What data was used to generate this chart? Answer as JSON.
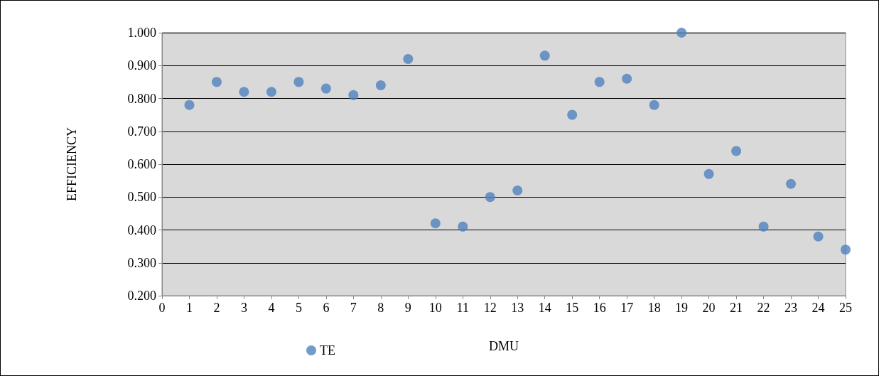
{
  "chart_data": {
    "type": "scatter",
    "xlabel": "DMU",
    "ylabel": "EFFICIENCY",
    "x": [
      1,
      2,
      3,
      4,
      5,
      6,
      7,
      8,
      9,
      10,
      11,
      12,
      13,
      14,
      15,
      16,
      17,
      18,
      19,
      20,
      21,
      22,
      23,
      24,
      25
    ],
    "series": [
      {
        "name": "TE",
        "color": "#4f81bd",
        "values": [
          0.78,
          0.85,
          0.82,
          0.82,
          0.85,
          0.83,
          0.81,
          0.84,
          0.92,
          0.42,
          0.41,
          0.5,
          0.52,
          0.93,
          0.75,
          0.85,
          0.86,
          0.78,
          1.0,
          0.57,
          0.64,
          0.41,
          0.54,
          0.38,
          0.34
        ]
      }
    ],
    "xlim": [
      0,
      25
    ],
    "xticks": [
      0,
      1,
      2,
      3,
      4,
      5,
      6,
      7,
      8,
      9,
      10,
      11,
      12,
      13,
      14,
      15,
      16,
      17,
      18,
      19,
      20,
      21,
      22,
      23,
      24,
      25
    ],
    "ylim": [
      0.2,
      1.0
    ],
    "yticks": [
      {
        "value": 0.2,
        "label": "0.200"
      },
      {
        "value": 0.3,
        "label": "0.300"
      },
      {
        "value": 0.4,
        "label": "0.400"
      },
      {
        "value": 0.5,
        "label": "0.500"
      },
      {
        "value": 0.6,
        "label": "0.600"
      },
      {
        "value": 0.7,
        "label": "0.700"
      },
      {
        "value": 0.8,
        "label": "0.800"
      },
      {
        "value": 0.9,
        "label": "0.900"
      },
      {
        "value": 1.0,
        "label": "1.000"
      }
    ],
    "grid": "y",
    "legend": "bottom",
    "marker": "circle"
  }
}
